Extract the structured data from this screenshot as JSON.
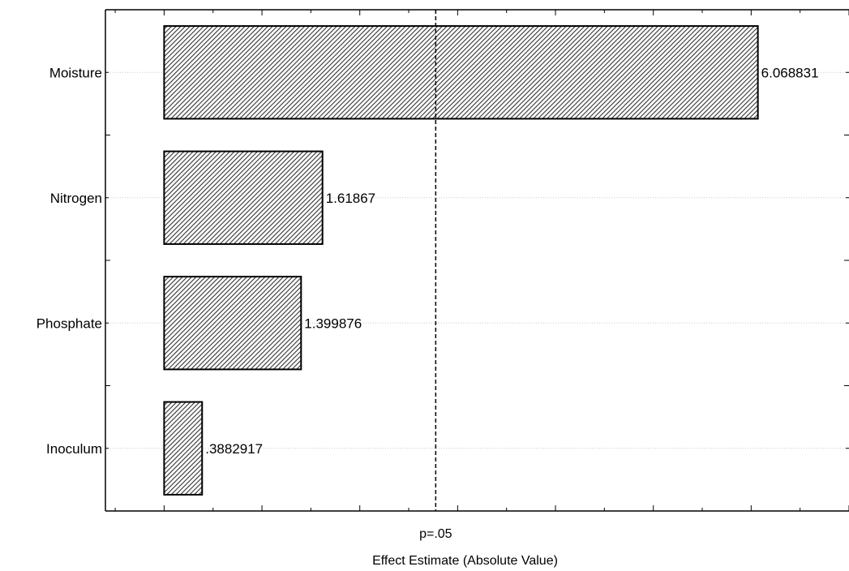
{
  "chart_data": {
    "type": "bar",
    "orientation": "horizontal",
    "title": "",
    "xlabel": "Effect Estimate (Absolute Value)",
    "ylabel": "",
    "categories": [
      "Moisture",
      "Nitrogen",
      "Phosphate",
      "Inoculum"
    ],
    "values": [
      6.068831,
      1.61867,
      1.399876,
      0.3882917
    ],
    "value_labels": [
      "6.068831",
      "1.61867",
      "1.399876",
      ".3882917"
    ],
    "xlim": [
      -0.6,
      7.0
    ],
    "reference_line": {
      "value": 2.776,
      "label": "p=.05",
      "style": "dashed"
    },
    "grid": "horizontal dotted lines at bar centers",
    "bar_fill": "diagonal hatch",
    "colors": {
      "bar_fill": "#ffffff",
      "hatch": "#333333",
      "outline": "#000000",
      "grid": "#c8c8c8"
    }
  }
}
